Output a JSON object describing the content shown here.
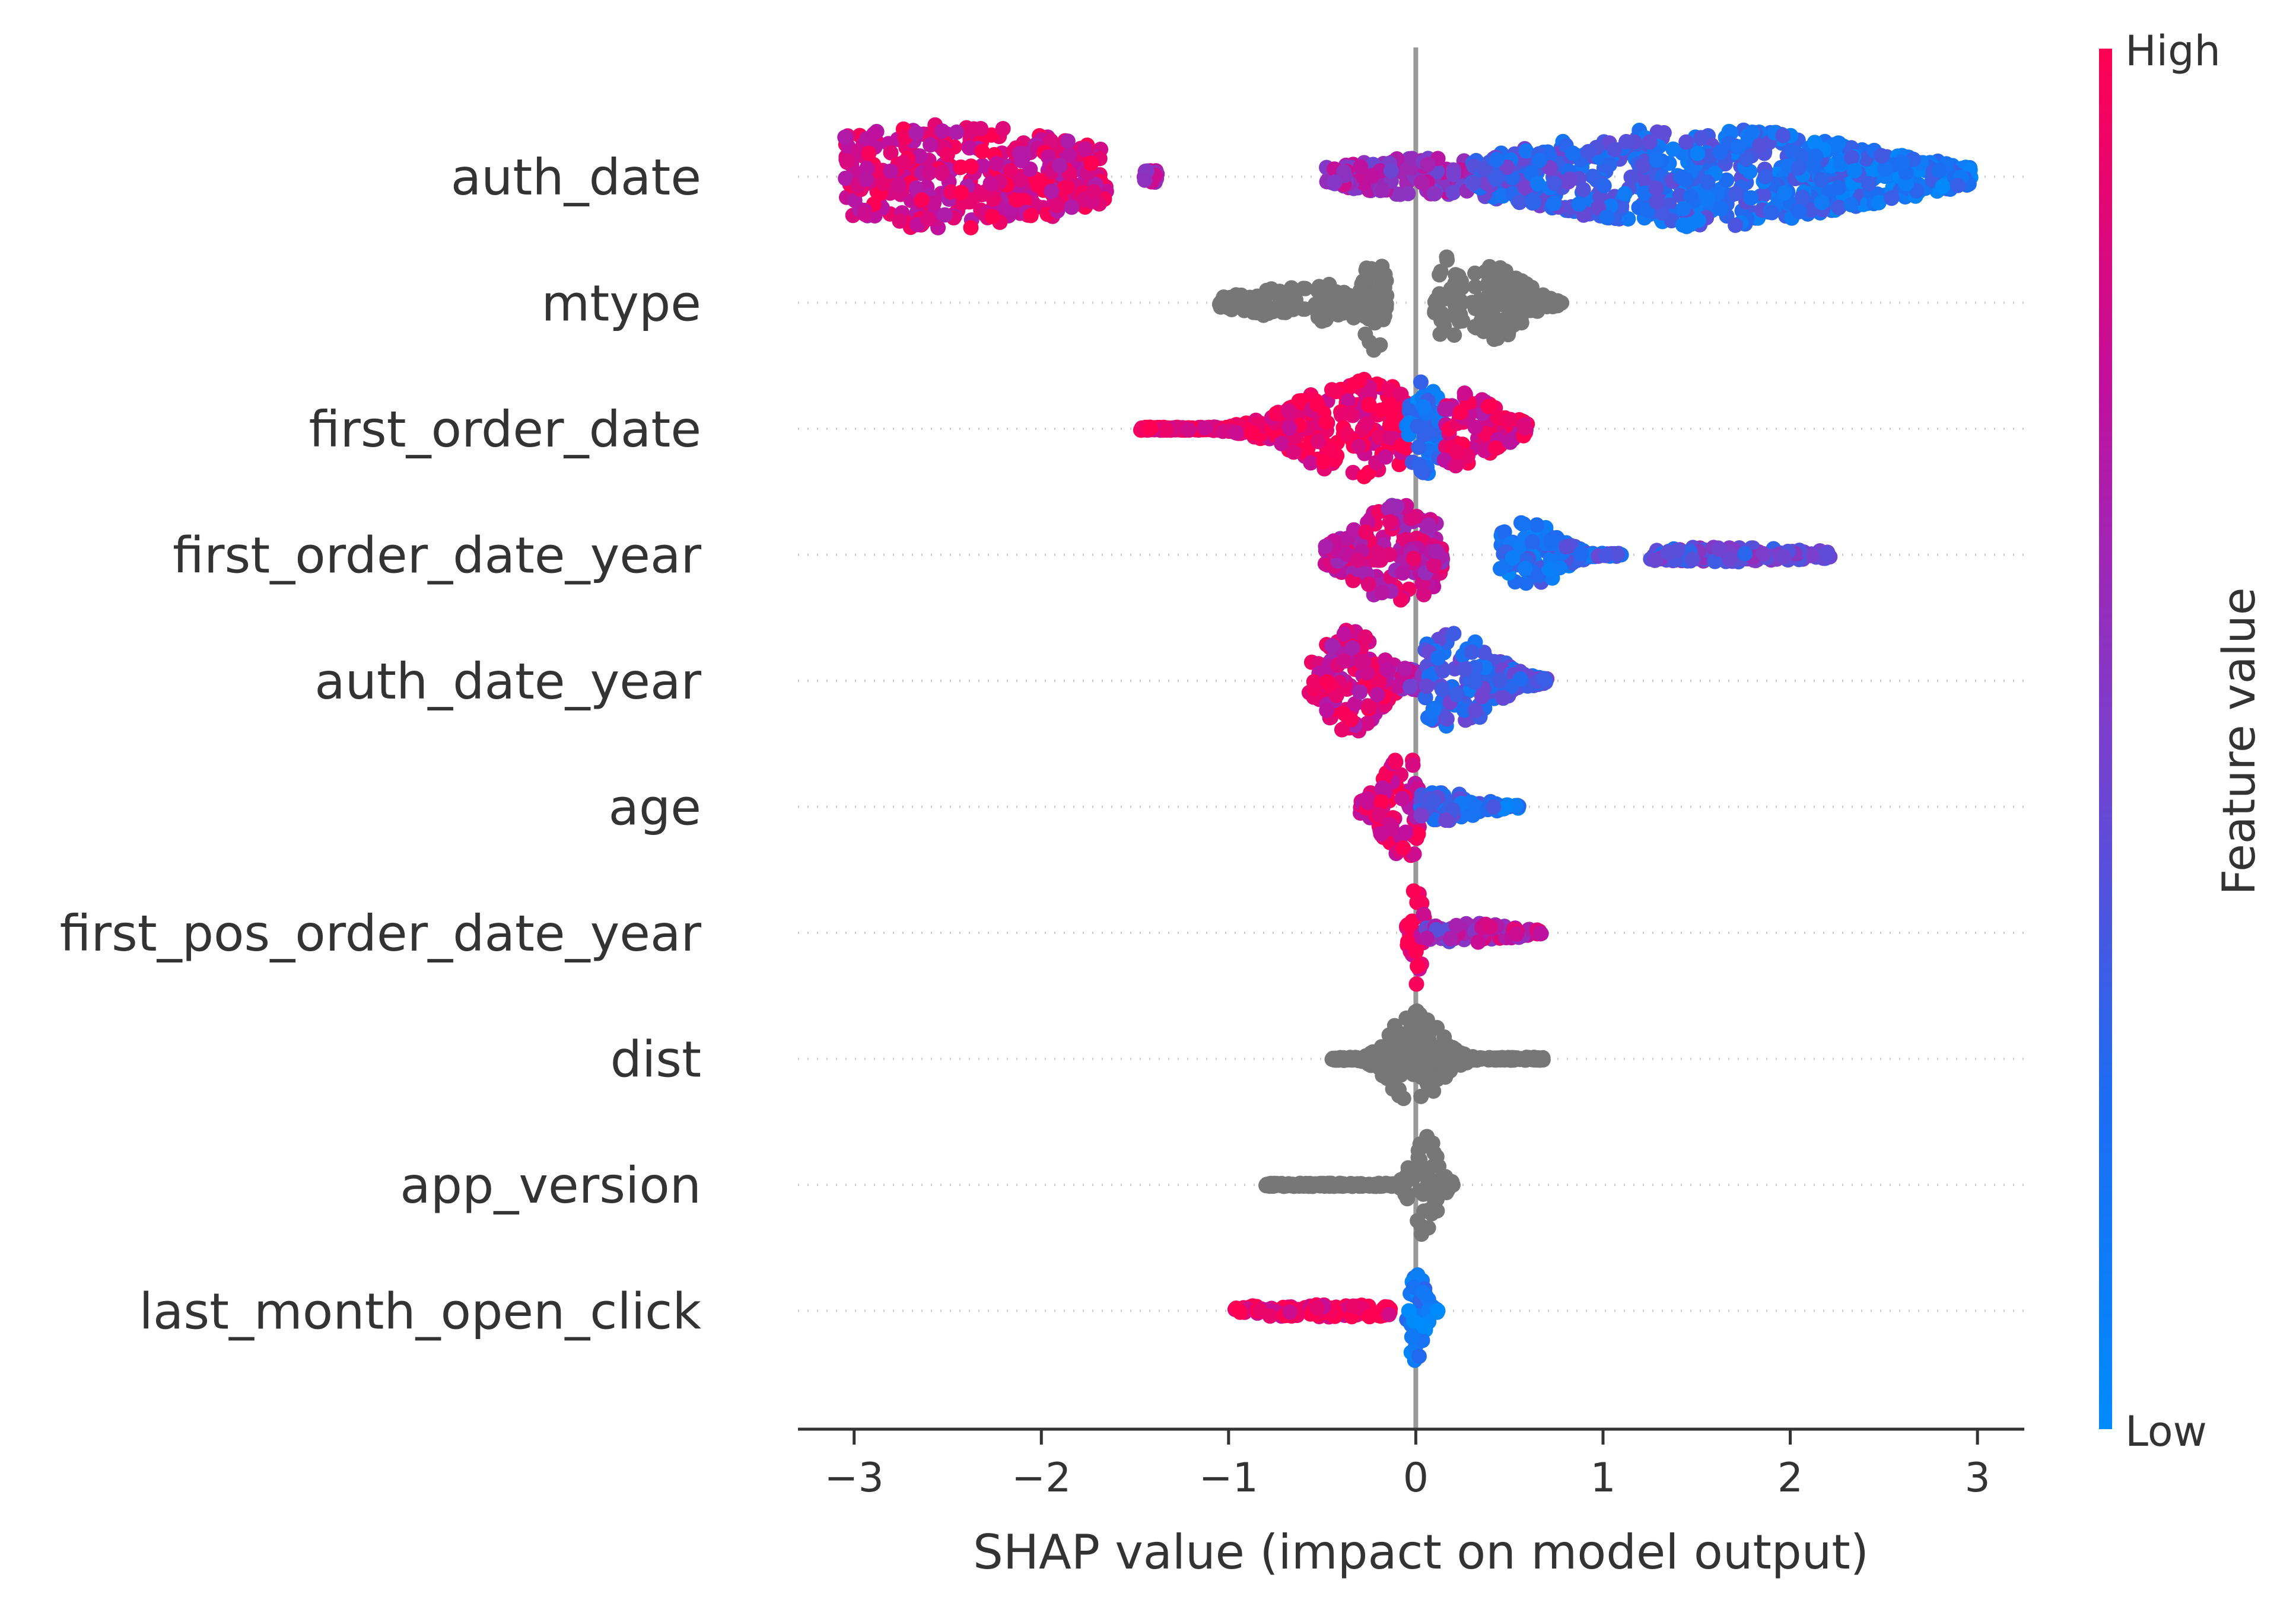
{
  "chart_data": {
    "type": "scatter",
    "subtype": "shap-beeswarm",
    "xlabel": "SHAP value (impact on model output)",
    "xlim": [
      -3.3,
      3.25
    ],
    "xticks": [
      -3,
      -2,
      -1,
      0,
      1,
      2,
      3
    ],
    "xtick_labels": [
      "−3",
      "−2",
      "−1",
      "0",
      "1",
      "2",
      "3"
    ],
    "colorbar": {
      "title": "Feature value",
      "high_label": "High",
      "low_label": "Low",
      "high_color": "#ff0052",
      "low_color": "#008bfb"
    },
    "colors": {
      "high": "#ff0052",
      "mid": "#a000b0",
      "low": "#008bfb",
      "neutral": "#777777",
      "zero_line": "#999999",
      "grid": "#cccccc",
      "axis": "#333333"
    },
    "features": [
      {
        "name": "auth_date",
        "colored": true,
        "segments": [
          {
            "from": -3.05,
            "to": -1.65,
            "color_from": 0.85,
            "color_to": 0.85,
            "peak": -2.5,
            "spread": 0.75,
            "max_height": 0.42
          },
          {
            "from": -1.45,
            "to": -1.38,
            "color_from": 0.7,
            "color_to": 0.7,
            "peak": -1.42,
            "spread": 0.1,
            "max_height": 0.05
          },
          {
            "from": -0.48,
            "to": 0.3,
            "color_from": 0.65,
            "color_to": 0.6,
            "peak": 0.05,
            "spread": 0.45,
            "max_height": 0.15
          },
          {
            "from": 0.3,
            "to": 2.97,
            "color_from": 0.35,
            "color_to": 0.15,
            "peak": 1.5,
            "spread": 0.85,
            "max_height": 0.4
          }
        ]
      },
      {
        "name": "mtype",
        "colored": false,
        "segments": [
          {
            "from": -1.05,
            "to": -0.15,
            "peak": -0.5,
            "spread": 0.35,
            "max_height": 0.15
          },
          {
            "from": -0.3,
            "to": -0.15,
            "peak": -0.22,
            "spread": 0.06,
            "max_height": 0.38
          },
          {
            "from": 0.1,
            "to": 0.25,
            "peak": 0.17,
            "spread": 0.06,
            "max_height": 0.4
          },
          {
            "from": 0.3,
            "to": 0.78,
            "peak": 0.42,
            "spread": 0.15,
            "max_height": 0.3
          }
        ]
      },
      {
        "name": "first_order_date",
        "colored": true,
        "segments": [
          {
            "from": -1.47,
            "to": -0.05,
            "color_from": 0.95,
            "color_to": 0.95,
            "peak": -0.3,
            "spread": 0.3,
            "max_height": 0.4
          },
          {
            "from": -0.05,
            "to": 0.15,
            "color_from": 0.2,
            "color_to": 0.15,
            "peak": 0.05,
            "spread": 0.08,
            "max_height": 0.4
          },
          {
            "from": 0.15,
            "to": 0.6,
            "color_from": 0.85,
            "color_to": 0.9,
            "peak": 0.22,
            "spread": 0.2,
            "max_height": 0.3
          }
        ]
      },
      {
        "name": "first_order_date_year",
        "colored": true,
        "segments": [
          {
            "from": -0.5,
            "to": 0.15,
            "color_from": 0.8,
            "color_to": 0.75,
            "peak": -0.1,
            "spread": 0.22,
            "max_height": 0.4
          },
          {
            "from": 0.45,
            "to": 1.1,
            "color_from": 0.2,
            "color_to": 0.3,
            "peak": 0.6,
            "spread": 0.15,
            "max_height": 0.28
          },
          {
            "from": 1.25,
            "to": 2.22,
            "color_from": 0.4,
            "color_to": 0.5,
            "peak": 1.6,
            "spread": 0.5,
            "max_height": 0.06
          }
        ]
      },
      {
        "name": "auth_date_year",
        "colored": true,
        "segments": [
          {
            "from": -0.57,
            "to": -0.1,
            "color_from": 0.8,
            "color_to": 0.85,
            "peak": -0.35,
            "spread": 0.15,
            "max_height": 0.42
          },
          {
            "from": -0.1,
            "to": 0.05,
            "color_from": 0.7,
            "color_to": 0.6,
            "peak": -0.05,
            "spread": 0.08,
            "max_height": 0.1
          },
          {
            "from": 0.05,
            "to": 0.7,
            "color_from": 0.3,
            "color_to": 0.35,
            "peak": 0.2,
            "spread": 0.2,
            "max_height": 0.38
          }
        ]
      },
      {
        "name": "age",
        "colored": true,
        "segments": [
          {
            "from": -0.3,
            "to": 0.02,
            "color_from": 0.9,
            "color_to": 0.85,
            "peak": -0.05,
            "spread": 0.12,
            "max_height": 0.42
          },
          {
            "from": 0.02,
            "to": 0.55,
            "color_from": 0.35,
            "color_to": 0.15,
            "peak": 0.12,
            "spread": 0.2,
            "max_height": 0.12
          }
        ]
      },
      {
        "name": "first_pos_order_date_year",
        "colored": true,
        "segments": [
          {
            "from": -0.05,
            "to": 0.05,
            "color_from": 0.95,
            "color_to": 0.9,
            "peak": 0.0,
            "spread": 0.03,
            "max_height": 0.42
          },
          {
            "from": 0.05,
            "to": 0.68,
            "color_from": 0.55,
            "color_to": 0.8,
            "peak": 0.25,
            "spread": 0.25,
            "max_height": 0.08
          }
        ]
      },
      {
        "name": "dist",
        "colored": false,
        "segments": [
          {
            "from": -0.45,
            "to": 0.68,
            "peak": 0.0,
            "spread": 0.12,
            "max_height": 0.42
          }
        ]
      },
      {
        "name": "app_version",
        "colored": false,
        "segments": [
          {
            "from": -0.8,
            "to": 0.2,
            "peak": 0.05,
            "spread": 0.06,
            "max_height": 0.42
          }
        ]
      },
      {
        "name": "last_month_open_click",
        "colored": true,
        "segments": [
          {
            "from": -0.97,
            "to": -0.1,
            "color_from": 0.95,
            "color_to": 0.95,
            "peak": -0.5,
            "spread": 0.6,
            "max_height": 0.05
          },
          {
            "from": -0.05,
            "to": 0.12,
            "color_from": 0.15,
            "color_to": 0.1,
            "peak": 0.0,
            "spread": 0.04,
            "max_height": 0.42
          }
        ]
      }
    ]
  }
}
